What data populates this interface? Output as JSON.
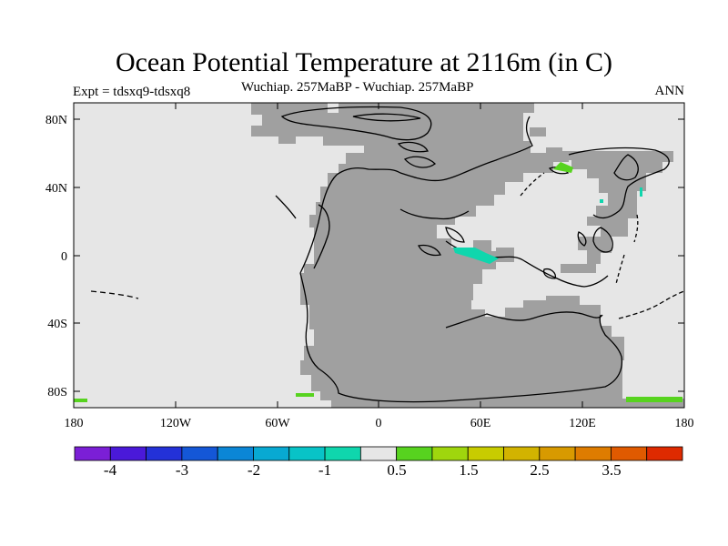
{
  "title": "Ocean Potential Temperature at 2116m (in C)",
  "left_label": "Expt = tdsxq9-tdsxq8",
  "center_label": "Wuchiap. 257MaBP - Wuchiap. 257MaBP",
  "right_label": "ANN",
  "map": {
    "lon_ticks": [
      "180",
      "120W",
      "60W",
      "0",
      "60E",
      "120E",
      "180"
    ],
    "lat_ticks": [
      "80N",
      "40N",
      "0",
      "40S",
      "80S"
    ]
  },
  "colorbar": {
    "colors": [
      "#7b1fd6",
      "#4a19d9",
      "#2331d8",
      "#1457d7",
      "#0b86d6",
      "#08a9d2",
      "#08c3c7",
      "#0fd6ad",
      "#e6e6e6",
      "#57d31f",
      "#9fd60d",
      "#c8cc00",
      "#d2b300",
      "#d89a00",
      "#de7c00",
      "#e05a00",
      "#de2a00"
    ],
    "labels": [
      "-4",
      "-3",
      "-2",
      "-1",
      "0.5",
      "1.5",
      "2.5",
      "3.5"
    ]
  },
  "colors": {
    "land": "#a0a0a0",
    "ocean": "#e6e6e6"
  }
}
